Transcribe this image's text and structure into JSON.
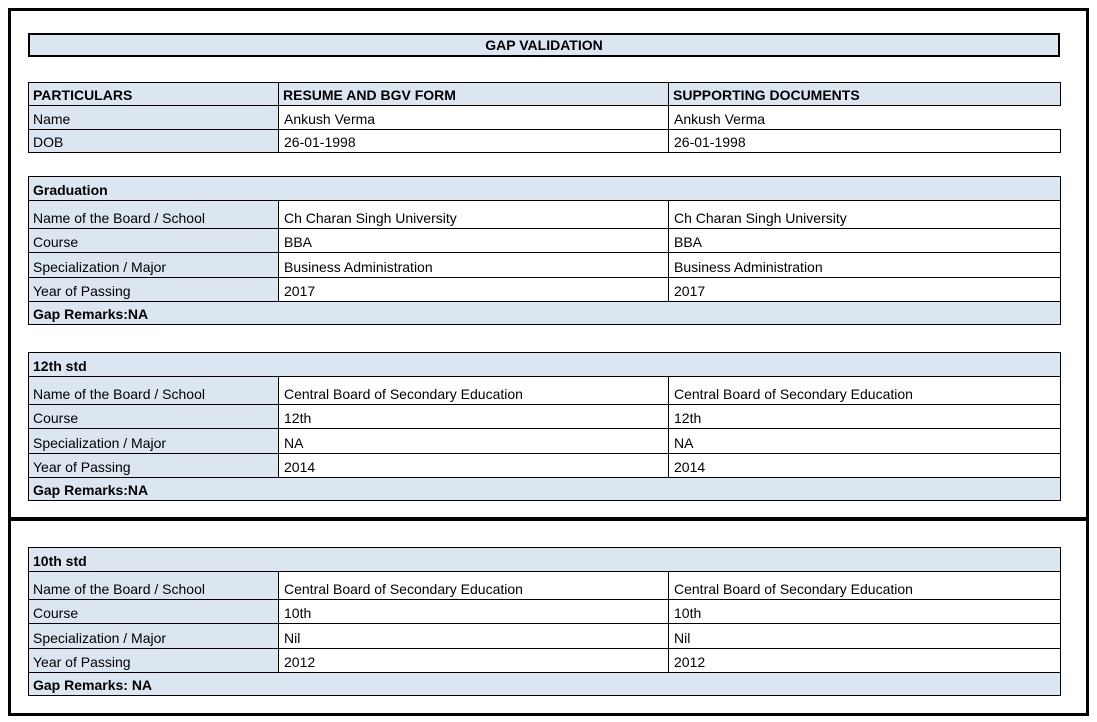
{
  "title": "GAP VALIDATION",
  "colors": {
    "header_fill": "#dce6f1",
    "border": "#000000"
  },
  "table": {
    "headers": [
      "PARTICULARS",
      "RESUME AND BGV FORM",
      "SUPPORTING DOCUMENTS"
    ],
    "rows": [
      {
        "label": "Name",
        "resume": "Ankush Verma",
        "supporting": "Ankush Verma"
      },
      {
        "label": "DOB",
        "resume": "26-01-1998",
        "supporting": "26-01-1998"
      }
    ]
  },
  "sections": [
    {
      "title": "Graduation",
      "rows": [
        {
          "label": "Name of the Board / School",
          "resume": "Ch Charan Singh University",
          "supporting": "Ch Charan Singh University"
        },
        {
          "label": "Course",
          "resume": "BBA",
          "supporting": "BBA"
        },
        {
          "label": "Specialization / Major",
          "resume": "Business Administration",
          "supporting": "Business Administration"
        },
        {
          "label": "Year of Passing",
          "resume": "2017",
          "supporting": "2017"
        }
      ],
      "gap_remarks": "Gap Remarks:NA"
    },
    {
      "title": "12th std",
      "rows": [
        {
          "label": "Name of the Board / School",
          "resume": "Central Board of Secondary Education",
          "supporting": "Central Board of Secondary Education"
        },
        {
          "label": "Course",
          "resume": "12th",
          "supporting": "12th"
        },
        {
          "label": "Specialization / Major",
          "resume": "NA",
          "supporting": "NA"
        },
        {
          "label": "Year of Passing",
          "resume": "2014",
          "supporting": "2014"
        }
      ],
      "gap_remarks": "Gap Remarks:NA"
    },
    {
      "title": "10th std",
      "rows": [
        {
          "label": "Name of the Board / School",
          "resume": "Central Board of Secondary Education",
          "supporting": "Central Board of Secondary Education"
        },
        {
          "label": "Course",
          "resume": "10th",
          "supporting": "10th"
        },
        {
          "label": "Specialization / Major",
          "resume": "Nil",
          "supporting": "Nil"
        },
        {
          "label": "Year of Passing",
          "resume": "2012",
          "supporting": "2012"
        }
      ],
      "gap_remarks": "Gap Remarks: NA"
    }
  ]
}
